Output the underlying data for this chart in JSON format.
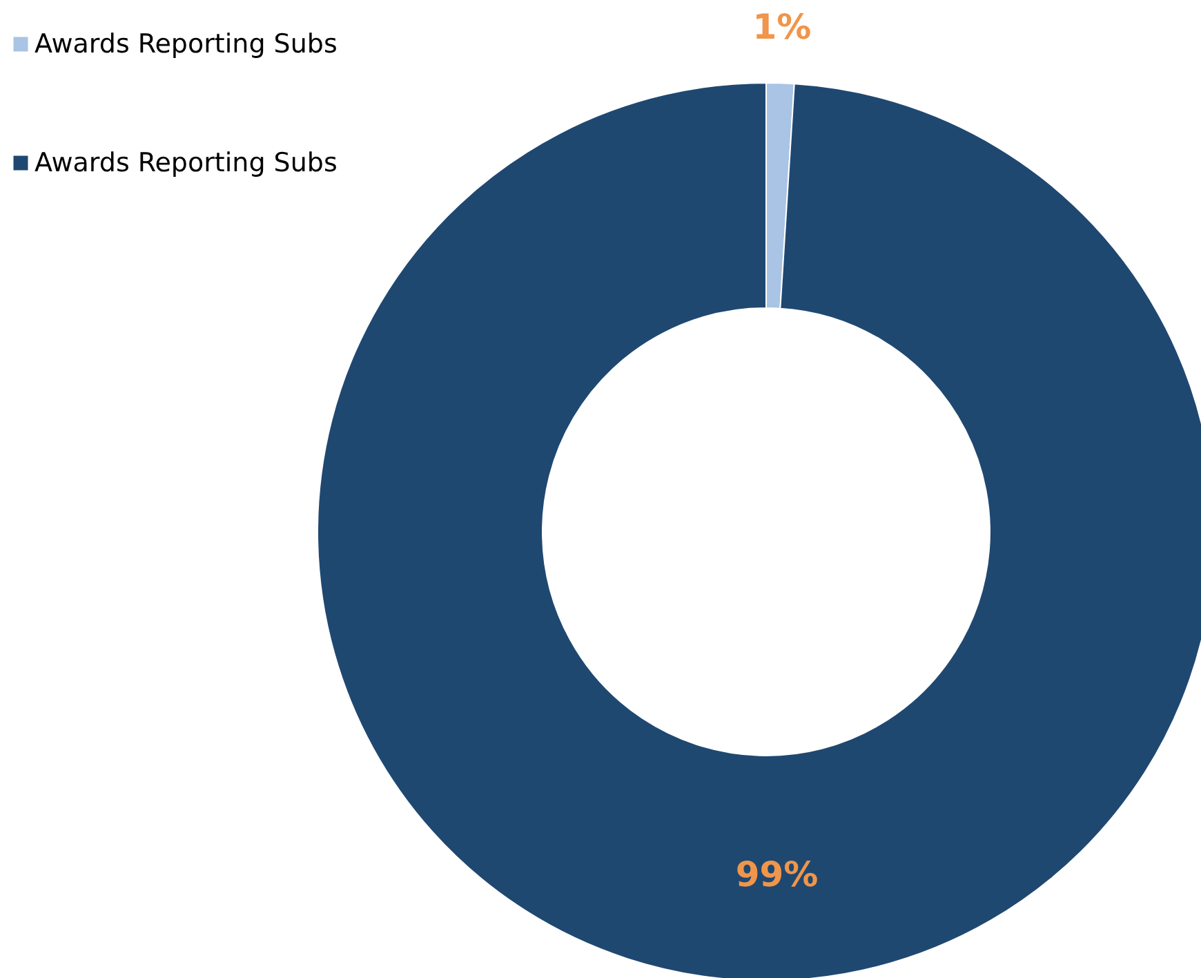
{
  "chart_data": {
    "type": "donut",
    "categories": [
      "Awards Reporting Subs",
      "Awards Reporting Subs"
    ],
    "values": [
      1,
      99
    ],
    "colors": [
      "#a9c4e4",
      "#1f4871"
    ],
    "value_labels": [
      "1%",
      "99%"
    ],
    "legend": "top left"
  }
}
